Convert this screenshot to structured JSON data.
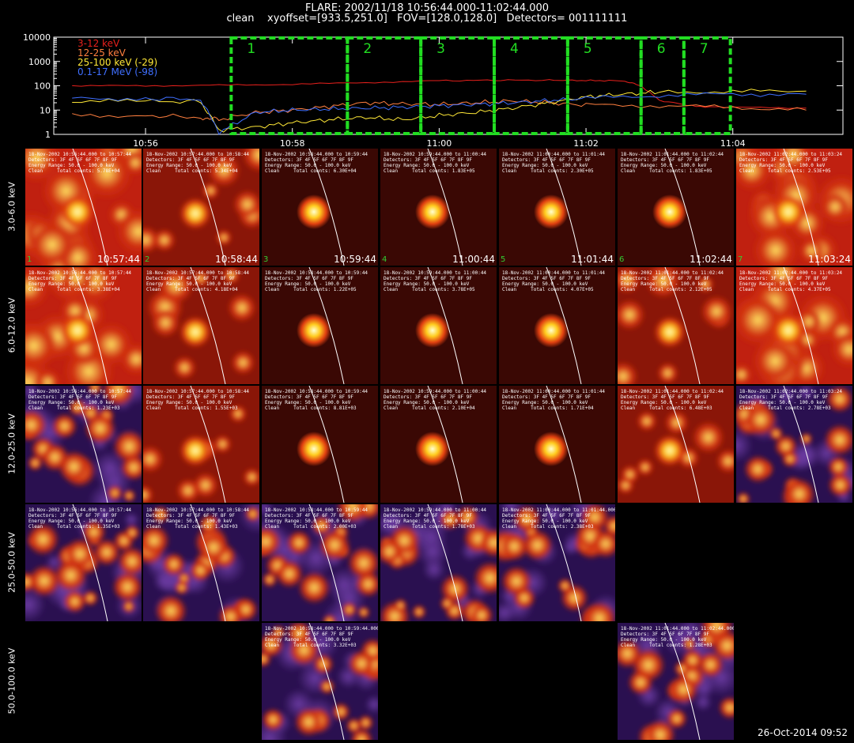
{
  "header": {
    "line1": "FLARE: 2002/11/18 10:56:44.000-11:02:44.000",
    "line2": "clean    xyoffset=[933.5,251.0]   FOV=[128.0,128.0]   Detectors= 001111111"
  },
  "chart_data": {
    "type": "line",
    "x_ticks": [
      "10:56",
      "10:58",
      "11:00",
      "11:02",
      "11:04"
    ],
    "y_ticks": [
      "1",
      "10",
      "100",
      "1000",
      "10000"
    ],
    "ylim": [
      1,
      10000
    ],
    "y_scale": "log",
    "legend_placement": "top-left",
    "series": [
      {
        "name": "3-12 keV",
        "color": "#e8201c",
        "x": [
          "10:55:00",
          "10:56:00",
          "10:57:00",
          "10:58:00",
          "10:59:00",
          "11:00:00",
          "11:00:45",
          "11:01:30",
          "11:02:00",
          "11:02:30",
          "11:02:45",
          "11:03:00",
          "11:03:30",
          "11:04:00",
          "11:05:00"
        ],
        "y": [
          100,
          100,
          105,
          115,
          135,
          160,
          170,
          170,
          165,
          160,
          100,
          25,
          14,
          13,
          12
        ]
      },
      {
        "name": "12-25 keV",
        "color": "#ff7f3f",
        "x": [
          "10:55:00",
          "10:56:00",
          "10:56:45",
          "10:57:00",
          "10:57:30",
          "10:58:00",
          "10:58:30",
          "10:59:00",
          "10:59:30",
          "11:00:00",
          "11:00:30",
          "11:01:00",
          "11:01:30",
          "11:02:00",
          "11:03:00",
          "11:04:00",
          "11:05:00"
        ],
        "y": [
          6,
          6,
          5,
          4,
          8,
          10,
          14,
          20,
          18,
          17,
          20,
          24,
          20,
          16,
          15,
          13,
          10
        ]
      },
      {
        "name": "25-100 keV (-29)",
        "color": "#ffe837",
        "x": [
          "10:55:00",
          "10:56:00",
          "10:56:45",
          "10:57:00",
          "10:57:30",
          "10:58:00",
          "10:58:30",
          "10:59:00",
          "10:59:30",
          "11:00:00",
          "11:00:30",
          "11:01:00",
          "11:01:30",
          "11:02:00",
          "11:02:30",
          "11:03:00",
          "11:04:00",
          "11:05:00"
        ],
        "y": [
          23,
          23,
          22,
          1.5,
          2,
          3,
          4,
          5,
          4,
          6,
          8,
          12,
          20,
          35,
          45,
          55,
          58,
          60
        ]
      },
      {
        "name": "0.1-17 MeV (-98)",
        "color": "#3f6fff",
        "x": [
          "10:55:00",
          "10:56:00",
          "10:56:45",
          "10:57:00",
          "10:57:30",
          "10:58:00",
          "10:58:30",
          "10:59:00",
          "10:59:30",
          "11:00:00",
          "11:00:30",
          "11:01:00",
          "11:01:30",
          "11:02:00",
          "11:03:00",
          "11:04:00",
          "11:05:00"
        ],
        "y": [
          30,
          30,
          28,
          1.2,
          8,
          10,
          11,
          12,
          13,
          15,
          17,
          20,
          25,
          30,
          40,
          45,
          45
        ]
      }
    ],
    "intervals": [
      "1",
      "2",
      "3",
      "4",
      "5",
      "6",
      "7"
    ],
    "interval_color": "#22dd22"
  },
  "rows": [
    "3.0-6.0 keV",
    "6.0-12.0 keV",
    "12.0-25.0 keV",
    "25.0-50.0 keV",
    "50.0-100.0 keV"
  ],
  "panel_template": {
    "date_prefix": "18-Nov-2002",
    "detectors": "Detectors: 3F 4F 5F 6F 7F 8F 9F",
    "energy": "Energy Range: 50.0 - 100.0 keV",
    "clean": "Clean     Total counts:"
  },
  "panels": [
    {
      "row": 0,
      "col": 0,
      "range": "10:56:44.000 to 10:57:44",
      "counts": "5.78E+04",
      "num": "1",
      "time": "10:57:44",
      "style": "diffuse"
    },
    {
      "row": 0,
      "col": 1,
      "range": "10:57:44.000 to 10:58:44",
      "counts": "5.34E+04",
      "num": "2",
      "time": "10:58:44",
      "style": "source"
    },
    {
      "row": 0,
      "col": 2,
      "range": "10:58:44.000 to 10:59:44",
      "counts": "6.30E+04",
      "num": "3",
      "time": "10:59:44",
      "style": "compact"
    },
    {
      "row": 0,
      "col": 3,
      "range": "10:59:44.000 to 11:00:44",
      "counts": "1.83E+05",
      "num": "4",
      "time": "11:00:44",
      "style": "compact"
    },
    {
      "row": 0,
      "col": 4,
      "range": "11:00:44.000 to 11:01:44",
      "counts": "2.30E+05",
      "num": "5",
      "time": "11:01:44",
      "style": "compact"
    },
    {
      "row": 0,
      "col": 5,
      "range": "11:01:44.000 to 11:02:44",
      "counts": "1.83E+05",
      "num": "6",
      "time": "11:02:44",
      "style": "compact"
    },
    {
      "row": 0,
      "col": 6,
      "range": "11:02:44.000 to 11:03:24",
      "counts": "2.53E+05",
      "num": "7",
      "time": "11:03:24",
      "style": "diffuse"
    },
    {
      "row": 1,
      "col": 0,
      "range": "10:56:44.000 to 10:57:44",
      "counts": "3.38E+04",
      "style": "diffuse"
    },
    {
      "row": 1,
      "col": 1,
      "range": "10:57:44.000 to 10:58:44",
      "counts": "4.18E+04",
      "style": "source"
    },
    {
      "row": 1,
      "col": 2,
      "range": "10:58:44.000 to 10:59:44",
      "counts": "1.22E+05",
      "style": "compact"
    },
    {
      "row": 1,
      "col": 3,
      "range": "10:59:44.000 to 11:00:44",
      "counts": "3.78E+05",
      "style": "compact"
    },
    {
      "row": 1,
      "col": 4,
      "range": "11:00:44.000 to 11:01:44",
      "counts": "4.07E+05",
      "style": "compact"
    },
    {
      "row": 1,
      "col": 5,
      "range": "11:01:44.000 to 11:02:44",
      "counts": "2.12E+05",
      "style": "source"
    },
    {
      "row": 1,
      "col": 6,
      "range": "11:02:44.000 to 11:03:24",
      "counts": "4.37E+05",
      "style": "diffuse"
    },
    {
      "row": 2,
      "col": 0,
      "range": "10:56:44.000 to 10:57:44",
      "counts": "1.23E+03",
      "style": "noisy"
    },
    {
      "row": 2,
      "col": 1,
      "range": "10:57:44.000 to 10:58:44",
      "counts": "1.55E+03",
      "style": "source"
    },
    {
      "row": 2,
      "col": 2,
      "range": "10:58:44.000 to 10:59:44",
      "counts": "8.81E+03",
      "style": "compact"
    },
    {
      "row": 2,
      "col": 3,
      "range": "10:59:44.000 to 11:00:44",
      "counts": "2.10E+04",
      "style": "compact"
    },
    {
      "row": 2,
      "col": 4,
      "range": "11:00:44.000 to 11:01:44",
      "counts": "1.71E+04",
      "style": "compact"
    },
    {
      "row": 2,
      "col": 5,
      "range": "11:01:44.000 to 11:02:44",
      "counts": "6.48E+03",
      "style": "source"
    },
    {
      "row": 2,
      "col": 6,
      "range": "11:02:44.000 to 11:03:24",
      "counts": "2.78E+03",
      "style": "noisy"
    },
    {
      "row": 3,
      "col": 0,
      "range": "10:56:44.000 to 10:57:44",
      "counts": "1.35E+03",
      "style": "noisy"
    },
    {
      "row": 3,
      "col": 1,
      "range": "10:57:44.000 to 10:58:44",
      "counts": "1.43E+03",
      "style": "noisy"
    },
    {
      "row": 3,
      "col": 2,
      "range": "10:58:44.000 to 10:59:44",
      "counts": "2.00E+03",
      "style": "noisy"
    },
    {
      "row": 3,
      "col": 3,
      "range": "10:59:44.000 to 11:00:44",
      "counts": "1.78E+03",
      "style": "noisy"
    },
    {
      "row": 3,
      "col": 4,
      "range": "11:00:44.000 to 11:01:44.000",
      "counts": "2.38E+03",
      "style": "noisy"
    },
    {
      "row": 4,
      "col": 2,
      "range": "10:58:44.000 to 10:59:44.000",
      "counts": "3.32E+03",
      "style": "noisy"
    },
    {
      "row": 4,
      "col": 5,
      "range": "11:01:44.000 to 11:02:44.000",
      "counts": "1.28E+03",
      "style": "noisy"
    }
  ],
  "stamp": "26-Oct-2014 09:52"
}
